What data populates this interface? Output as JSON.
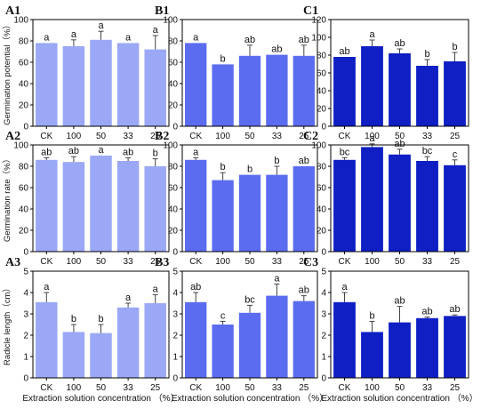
{
  "figure": {
    "xaxis_title": "Extraction solution concentration （%）",
    "row_ylabels": [
      "Germination potential（%）",
      "Germination rate（%）",
      "Radicle length（cm）"
    ],
    "column_colors": [
      "#9aa8f5",
      "#5b6cf0",
      "#0f1fc4"
    ],
    "error_color": "#444444"
  },
  "chart_data": [
    {
      "id": "A1",
      "type": "bar",
      "categories": [
        "CK",
        "100",
        "50",
        "33",
        "25"
      ],
      "values": [
        78,
        75,
        81,
        78,
        72
      ],
      "errors": [
        0,
        6,
        8,
        0,
        13
      ],
      "sig": [
        "a",
        "a",
        "a",
        "a",
        "a"
      ],
      "ylim": [
        0,
        100
      ],
      "yticks": [
        0,
        20,
        40,
        60,
        80,
        100
      ],
      "ylabel": "Germination potential（%）"
    },
    {
      "id": "B1",
      "type": "bar",
      "categories": [
        "CK",
        "100",
        "50",
        "33",
        "25"
      ],
      "values": [
        78,
        58,
        66,
        67,
        66
      ],
      "errors": [
        0,
        0,
        10,
        0,
        10
      ],
      "sig": [
        "a",
        "b",
        "ab",
        "ab",
        "ab"
      ],
      "ylim": [
        0,
        100
      ],
      "yticks": [
        0,
        20,
        40,
        60,
        80,
        100
      ]
    },
    {
      "id": "C1",
      "type": "bar",
      "categories": [
        "CK",
        "100",
        "50",
        "33",
        "25"
      ],
      "values": [
        78,
        90,
        82,
        68,
        73
      ],
      "errors": [
        0,
        7,
        5,
        7,
        10
      ],
      "sig": [
        "ab",
        "a",
        "ab",
        "b",
        "b"
      ],
      "ylim": [
        0,
        120
      ],
      "yticks": [
        0,
        20,
        40,
        60,
        80,
        100,
        120
      ]
    },
    {
      "id": "A2",
      "type": "bar",
      "categories": [
        "CK",
        "100",
        "50",
        "33",
        "25"
      ],
      "values": [
        86,
        84,
        90,
        85,
        80
      ],
      "errors": [
        2,
        5,
        0,
        3,
        7
      ],
      "sig": [
        "ab",
        "ab",
        "a",
        "ab",
        "b"
      ],
      "ylim": [
        0,
        100
      ],
      "yticks": [
        0,
        20,
        40,
        60,
        80,
        100
      ],
      "ylabel": "Germination rate（%）"
    },
    {
      "id": "B2",
      "type": "bar",
      "categories": [
        "CK",
        "100",
        "50",
        "33",
        "25"
      ],
      "values": [
        86,
        67,
        72,
        72,
        80
      ],
      "errors": [
        2,
        7,
        0,
        8,
        0
      ],
      "sig": [
        "a",
        "b",
        "b",
        "b",
        "ab"
      ],
      "ylim": [
        0,
        100
      ],
      "yticks": [
        0,
        20,
        40,
        60,
        80,
        100
      ]
    },
    {
      "id": "C2",
      "type": "bar",
      "categories": [
        "CK",
        "100",
        "50",
        "33",
        "25"
      ],
      "values": [
        86,
        98,
        91,
        85,
        81
      ],
      "errors": [
        2,
        3,
        5,
        4,
        5
      ],
      "sig": [
        "bc",
        "a",
        "ab",
        "bc",
        "c"
      ],
      "ylim": [
        0,
        100
      ],
      "yticks": [
        0,
        20,
        40,
        60,
        80,
        100
      ]
    },
    {
      "id": "A3",
      "type": "bar",
      "categories": [
        "CK",
        "100",
        "50",
        "33",
        "25"
      ],
      "values": [
        3.55,
        2.15,
        2.1,
        3.3,
        3.5
      ],
      "errors": [
        0.45,
        0.35,
        0.4,
        0.2,
        0.4
      ],
      "sig": [
        "a",
        "b",
        "b",
        "a",
        "a"
      ],
      "ylim": [
        0,
        5
      ],
      "yticks": [
        0,
        1,
        2,
        3,
        4,
        5
      ],
      "ylabel": "Radicle length（cm）"
    },
    {
      "id": "B3",
      "type": "bar",
      "categories": [
        "CK",
        "100",
        "50",
        "33",
        "25"
      ],
      "values": [
        3.55,
        2.5,
        3.05,
        3.85,
        3.6
      ],
      "errors": [
        0.45,
        0.15,
        0.35,
        0.55,
        0.25
      ],
      "sig": [
        "ab",
        "c",
        "bc",
        "a",
        "ab"
      ],
      "ylim": [
        0,
        5
      ],
      "yticks": [
        0,
        1,
        2,
        3,
        4,
        5
      ]
    },
    {
      "id": "C3",
      "type": "bar",
      "categories": [
        "CK",
        "100",
        "50",
        "33",
        "25"
      ],
      "values": [
        3.55,
        2.15,
        2.6,
        2.8,
        2.9
      ],
      "errors": [
        0.45,
        0.5,
        0.75,
        0.05,
        0.05
      ],
      "sig": [
        "a",
        "b",
        "ab",
        "ab",
        "ab"
      ],
      "ylim": [
        0,
        5
      ],
      "yticks": [
        0,
        1,
        2,
        3,
        4,
        5
      ]
    }
  ]
}
